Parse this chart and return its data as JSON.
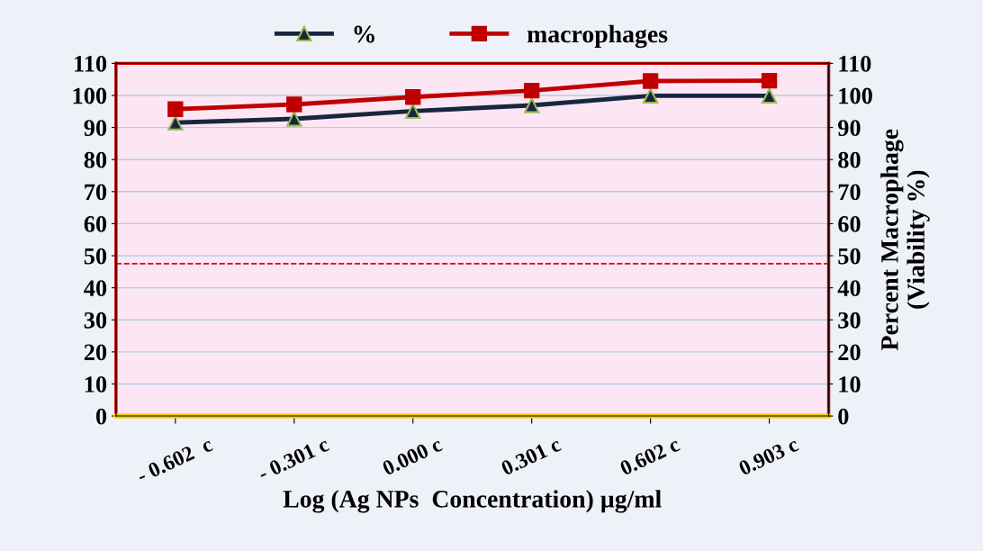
{
  "chart_data": {
    "type": "line",
    "xlabel": "Log (Ag NPs  Concentration) µg/ml",
    "y2label": "Percent Macrophage\n(Viability %)",
    "categories": [
      "- 0.602  c",
      "- 0.301 c",
      "0.000 c",
      "0.301 c",
      "0.602 c",
      "0.903 c"
    ],
    "series": [
      {
        "name": "%",
        "color": "#17273f",
        "marker": "triangle",
        "values": [
          91.5,
          92.7,
          95.1,
          96.9,
          99.9,
          99.9
        ]
      },
      {
        "name": "macrophages",
        "color": "#c00000",
        "marker": "square",
        "values": [
          95.7,
          97.2,
          99.5,
          101.5,
          104.5,
          104.6
        ]
      }
    ],
    "ylim": [
      0,
      110
    ],
    "yticks": [
      0,
      10,
      20,
      30,
      40,
      50,
      60,
      70,
      80,
      90,
      100,
      110
    ],
    "y2lim": [
      0,
      110
    ],
    "y2ticks": [
      0,
      10,
      20,
      30,
      40,
      50,
      60,
      70,
      80,
      90,
      100,
      110
    ],
    "ref_lines": [
      {
        "axis": "y",
        "value": 47.5,
        "label": null,
        "color": "#e00000",
        "line_style": "dashed"
      }
    ],
    "grid": "y",
    "legend": "top",
    "line_style": "solid"
  }
}
